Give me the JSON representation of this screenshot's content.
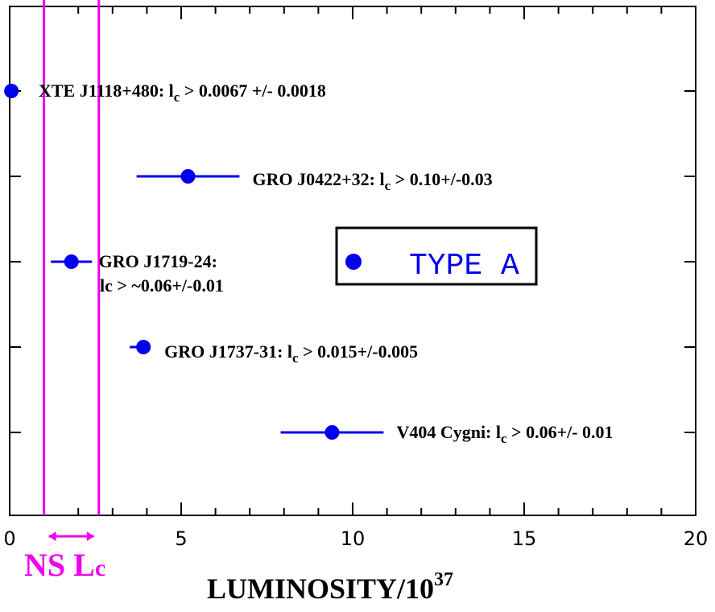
{
  "chart_data": {
    "type": "scatter",
    "xlabel": "LUMINOSITY/10",
    "xlabel_superscript": "37",
    "xlim": [
      0,
      20
    ],
    "x_ticks": [
      "0",
      "5",
      "10",
      "15",
      "20"
    ],
    "grid": false,
    "series": [
      {
        "points": [
          {
            "x": 0.05,
            "row": 1,
            "xerr_low": 0.05,
            "xerr_high": 0.05,
            "label": {
              "pre": "XTE J1118+480: l",
              "sub": "c",
              "post": " > 0.0067 +/- 0.0018"
            }
          },
          {
            "x": 5.2,
            "row": 2,
            "xerr_low": 1.5,
            "xerr_high": 1.5,
            "label": {
              "pre": "GRO J0422+32: l",
              "sub": "c",
              "post": " > 0.10+/-0.03"
            }
          },
          {
            "x": 1.8,
            "row": 3,
            "xerr_low": 0.6,
            "xerr_high": 0.6,
            "label": {
              "line1": "GRO J1719-24:",
              "pre": "lc > ~0.06+/-0.01",
              "sub": "",
              "post": ""
            }
          },
          {
            "x": 3.9,
            "row": 4,
            "xerr_low": 0.4,
            "xerr_high": 0.2,
            "label": {
              "pre": "GRO J1737-31: l",
              "sub": "c",
              "post": " > 0.015+/-0.005"
            }
          },
          {
            "x": 9.4,
            "row": 5,
            "xerr_low": 1.5,
            "xerr_high": 1.5,
            "label": {
              "pre": "V404 Cygni: l",
              "sub": "c",
              "post": " > 0.06+/- 0.01"
            }
          }
        ]
      }
    ],
    "legend": {
      "label": "TYPE A",
      "placement": "center-right"
    },
    "vertical_lines": [
      1.0,
      2.6
    ],
    "annotation": {
      "text": "NS L",
      "sub": "c"
    },
    "colors": {
      "points": "#0000ee",
      "vertical_lines": "#ee00ee",
      "legend_text": "#0000ee",
      "annotation": "#ee00ee"
    }
  }
}
